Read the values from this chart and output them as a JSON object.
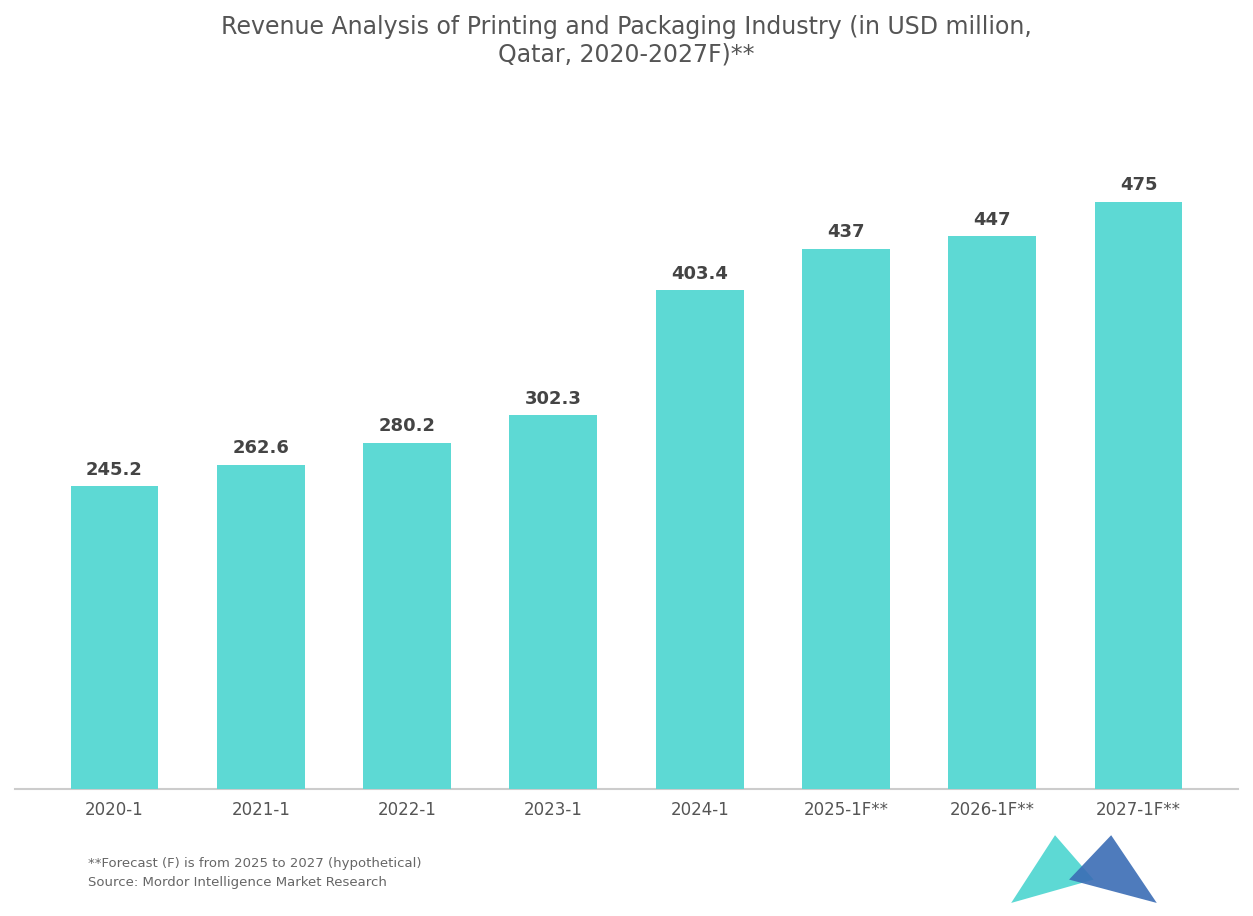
{
  "title_line1": "Revenue Analysis of Printing and Packaging Industry (in USD million,",
  "title_line2": "Qatar, 2020-2027F)**",
  "categories": [
    "2020-1",
    "2021-1",
    "2022-1",
    "2023-1",
    "2024-1",
    "2025-1F**",
    "2026-1F**",
    "2027-1F**"
  ],
  "values": [
    245.2,
    262.6,
    280.2,
    302.3,
    403.4,
    437,
    447,
    475
  ],
  "bar_labels": [
    "245.2",
    "262.6",
    "280.2",
    "302.3",
    "403.4",
    "437",
    "447",
    "475"
  ],
  "bar_color": "#5DD9D4",
  "background_color": "#ffffff",
  "plot_bg_color": "#ffffff",
  "text_color": "#555555",
  "title_color": "#555555",
  "label_color": "#444444",
  "axis_line_color": "#cccccc",
  "ylabel": "",
  "xlabel": "",
  "ylim": [
    0,
    560
  ],
  "footnote_line1": "**Forecast (F) is from 2025 to 2027 (hypothetical)",
  "footnote_line2": "Source: Mordor Intelligence Market Research",
  "title_fontsize": 17,
  "label_fontsize": 13,
  "tick_fontsize": 12
}
